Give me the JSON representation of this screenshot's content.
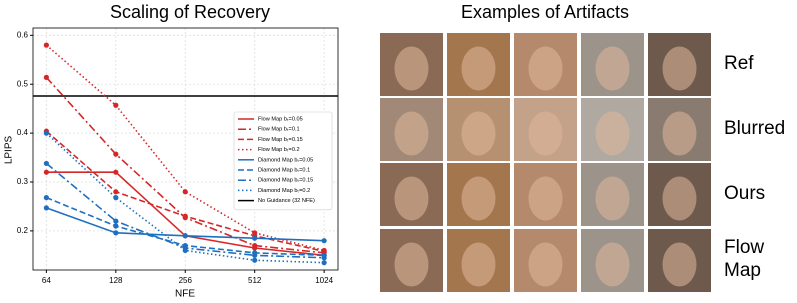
{
  "chart_data": {
    "type": "line",
    "title": "Scaling of Recovery",
    "xlabel": "NFE",
    "ylabel": "LPIPS",
    "x": [
      64,
      128,
      256,
      512,
      1024
    ],
    "xscale": "log",
    "xlim": [
      56,
      1176
    ],
    "xticks": [
      64,
      128,
      256,
      512,
      1024
    ],
    "ylim": [
      0.12,
      0.615
    ],
    "yticks": [
      0.2,
      0.3,
      0.4,
      0.5,
      0.6
    ],
    "grid": true,
    "legend": "upper right",
    "series": [
      {
        "name": "Flow Map bₜ=0.05",
        "color": "#d62728",
        "dash": "solid",
        "values": [
          0.32,
          0.32,
          0.19,
          0.165,
          0.15
        ]
      },
      {
        "name": "Flow Map bₜ=0.1",
        "color": "#d62728",
        "dash": "dashdot",
        "values": [
          0.514,
          0.357,
          0.227,
          0.17,
          0.155
        ]
      },
      {
        "name": "Flow Map bₜ=0.15",
        "color": "#d62728",
        "dash": "dashed",
        "values": [
          0.404,
          0.28,
          0.23,
          0.19,
          0.158
        ]
      },
      {
        "name": "Flow Map bₜ=0.2",
        "color": "#d62728",
        "dash": "dotted",
        "values": [
          0.58,
          0.457,
          0.28,
          0.196,
          0.16
        ]
      },
      {
        "name": "Diamond Map bₜ=0.05",
        "color": "#1f6fc0",
        "dash": "solid",
        "values": [
          0.247,
          0.196,
          0.19,
          0.185,
          0.18
        ]
      },
      {
        "name": "Diamond Map bₜ=0.1",
        "color": "#1f6fc0",
        "dash": "dashed",
        "values": [
          0.268,
          0.21,
          0.17,
          0.155,
          0.15
        ]
      },
      {
        "name": "Diamond Map bₜ=0.15",
        "color": "#1f6fc0",
        "dash": "dashdot",
        "values": [
          0.338,
          0.22,
          0.165,
          0.15,
          0.145
        ]
      },
      {
        "name": "Diamond Map bₜ=0.2",
        "color": "#1f6fc0",
        "dash": "dotted",
        "values": [
          0.4,
          0.268,
          0.16,
          0.14,
          0.135
        ]
      }
    ],
    "hlines": [
      {
        "name": "No Guidance (32 NFE)",
        "color": "#000000",
        "value": 0.476
      }
    ]
  },
  "artifacts": {
    "title": "Examples of Artifacts",
    "rows": [
      "Ref",
      "Blurred",
      "Ours",
      "Flow Map"
    ]
  }
}
